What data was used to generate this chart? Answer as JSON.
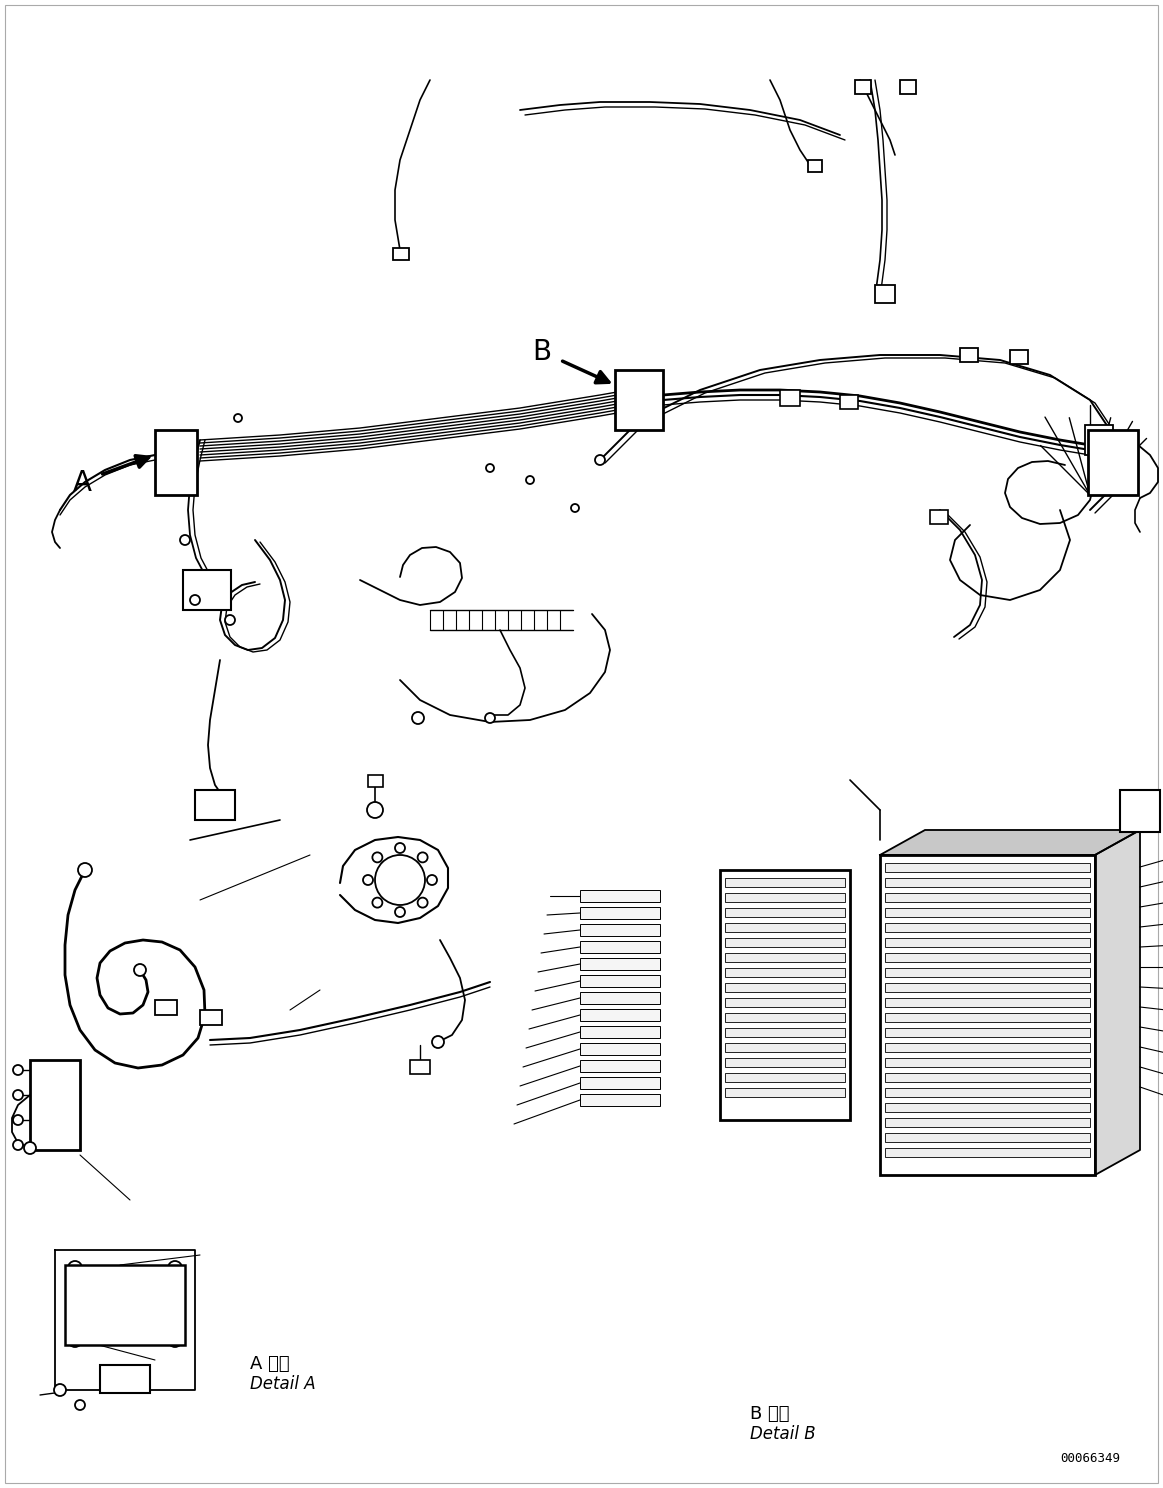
{
  "background_color": "#ffffff",
  "figure_width": 11.63,
  "figure_height": 14.88,
  "dpi": 100,
  "part_number": "00066349",
  "label_A": "A",
  "label_B": "B",
  "detail_A_jp": "A 詳細",
  "detail_A_en": "Detail A",
  "detail_B_jp": "B 詳細",
  "detail_B_en": "Detail B",
  "line_color": "#000000",
  "lw": 1.3
}
